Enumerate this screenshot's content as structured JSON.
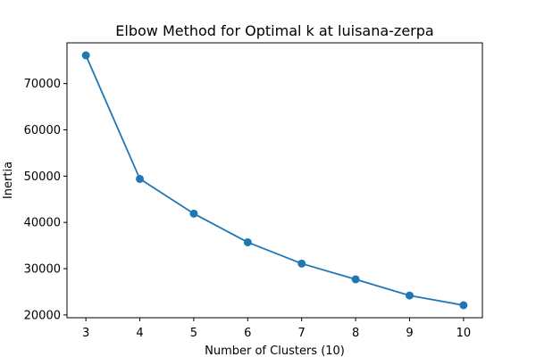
{
  "chart_data": {
    "type": "line",
    "title": "Elbow Method for Optimal k at luisana-zerpa",
    "xlabel": "Number of Clusters (10)",
    "ylabel": "Inertia",
    "x": [
      3,
      4,
      5,
      6,
      7,
      8,
      9,
      10
    ],
    "series": [
      {
        "values": [
          76100,
          49400,
          41900,
          35700,
          31100,
          27700,
          24200,
          22100
        ],
        "color": "#1f77b4",
        "marker": "circle"
      }
    ],
    "xlim": [
      2.65,
      10.35
    ],
    "ylim": [
      19400,
      78800
    ],
    "x_ticks": [
      3,
      4,
      5,
      6,
      7,
      8,
      9,
      10
    ],
    "y_ticks": [
      20000,
      30000,
      40000,
      50000,
      60000,
      70000
    ],
    "grid": false,
    "legend": "none"
  }
}
